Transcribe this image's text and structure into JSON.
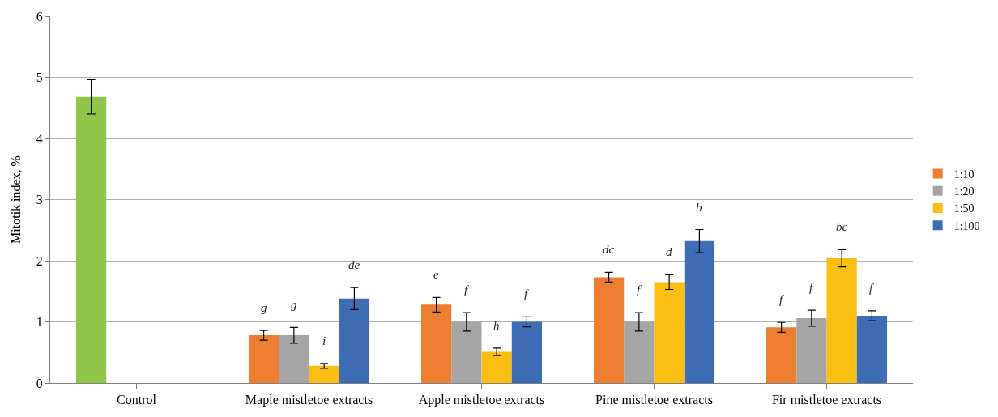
{
  "chart_data": {
    "type": "bar",
    "ylabel": "Mitotik index, %",
    "categories": [
      "Control",
      "Maple mistletoe extracts",
      "Apple mistletoe extracts",
      "Pine mistletoe extracts",
      "Fir mistletoe extracts"
    ],
    "series": [
      {
        "color": "#8fc64a",
        "values": [
          4.68,
          null,
          null,
          null,
          null
        ],
        "errors": [
          0.28,
          null,
          null,
          null,
          null
        ]
      },
      {
        "name": "1:10",
        "color": "#ed7d31",
        "values": [
          null,
          0.78,
          1.28,
          1.73,
          0.91
        ],
        "errors": [
          null,
          0.08,
          0.12,
          0.08,
          0.08
        ],
        "value_labels": [
          null,
          "g",
          "e",
          "dc",
          "f"
        ]
      },
      {
        "name": "1:20",
        "color": "#a5a5a5",
        "values": [
          null,
          0.78,
          1.0,
          1.0,
          1.06
        ],
        "errors": [
          null,
          0.13,
          0.15,
          0.15,
          0.13
        ],
        "value_labels": [
          null,
          "g",
          "f",
          "f",
          "f"
        ]
      },
      {
        "name": "1:50",
        "color": "#fbbf14",
        "values": [
          null,
          0.28,
          0.51,
          1.65,
          2.04
        ],
        "errors": [
          null,
          0.04,
          0.06,
          0.12,
          0.14
        ],
        "value_labels": [
          null,
          "i",
          "h",
          "d",
          "bc"
        ]
      },
      {
        "name": "1:100",
        "color": "#3e6db5",
        "values": [
          null,
          1.38,
          1.0,
          2.32,
          1.1
        ],
        "errors": [
          null,
          0.18,
          0.08,
          0.19,
          0.08
        ],
        "value_labels": [
          null,
          "de",
          "f",
          "b",
          "f"
        ]
      }
    ],
    "ylim": [
      0,
      6
    ],
    "yticks": [
      0,
      1,
      2,
      3,
      4,
      5,
      6
    ],
    "grid": "y",
    "legend": "right"
  }
}
